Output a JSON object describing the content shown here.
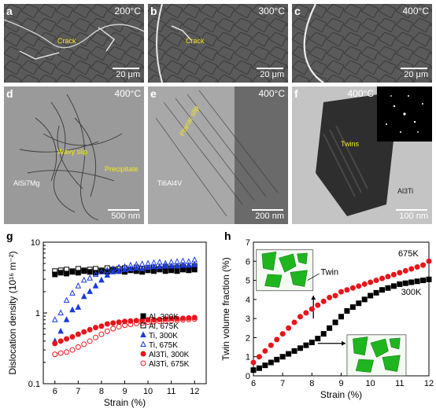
{
  "panels": {
    "a": {
      "label": "a",
      "temp": "200°C",
      "scale": "20 μm",
      "anno": [
        "Crack"
      ]
    },
    "b": {
      "label": "b",
      "temp": "300°C",
      "scale": "20 μm",
      "anno": [
        "Crack"
      ]
    },
    "c": {
      "label": "c",
      "temp": "400°C",
      "scale": "20 μm",
      "anno": []
    },
    "d": {
      "label": "d",
      "temp": "400°C",
      "scale": "500 nm",
      "anno": [
        "Wavy slip",
        "Precipitate",
        "AlSi7Mg"
      ]
    },
    "e": {
      "label": "e",
      "temp": "400°C",
      "scale": "200 nm",
      "anno": [
        "Planar slip",
        "Ti6Al4V"
      ]
    },
    "f": {
      "label": "f",
      "temp": "400°C",
      "scale": "100 nm",
      "anno": [
        "Twins",
        "Al3Ti"
      ]
    }
  },
  "chart_data": [
    {
      "panel": "g",
      "type": "scatter",
      "xlabel": "Strain (%)",
      "ylabel": "Dislocation density (10¹⁶ m⁻²)",
      "yscale": "log",
      "xlim": [
        5.5,
        12.5
      ],
      "ylim": [
        0.1,
        10
      ],
      "xticks": [
        "6",
        "7",
        "8",
        "9",
        "10",
        "11",
        "12"
      ],
      "yticks": [
        "0.1",
        "1",
        "10"
      ],
      "legend_position": "lower-right",
      "series": [
        {
          "name": "Al, 300K",
          "marker": "square-filled",
          "color": "#000000",
          "x": [
            6,
            6.25,
            6.5,
            6.75,
            7,
            7.25,
            7.5,
            7.75,
            8,
            8.25,
            8.5,
            8.75,
            9,
            9.25,
            9.5,
            9.75,
            10,
            10.25,
            10.5,
            10.75,
            11,
            11.25,
            11.5,
            11.75,
            12
          ],
          "y": [
            3.5,
            3.7,
            3.6,
            3.8,
            3.7,
            3.9,
            3.8,
            3.7,
            3.9,
            3.8,
            4.0,
            3.9,
            3.8,
            4.0,
            3.9,
            3.8,
            4.0,
            3.9,
            4.1,
            3.9,
            4.0,
            3.9,
            4.1,
            4.0,
            4.1
          ]
        },
        {
          "name": "Al, 675K",
          "marker": "square-open",
          "color": "#000000",
          "x": [
            6,
            6.25,
            6.5,
            6.75,
            7,
            7.25,
            7.5,
            7.75,
            8,
            8.25,
            8.5,
            8.75,
            9,
            9.25,
            9.5,
            9.75,
            10,
            10.25,
            10.5,
            10.75,
            11,
            11.25,
            11.5,
            11.75,
            12
          ],
          "y": [
            3.9,
            4.0,
            4.1,
            3.9,
            4.2,
            4.0,
            4.1,
            4.2,
            4.0,
            4.3,
            4.1,
            4.2,
            4.3,
            4.1,
            4.4,
            4.2,
            4.3,
            4.4,
            4.2,
            4.5,
            4.3,
            4.4,
            4.5,
            4.3,
            4.6
          ]
        },
        {
          "name": "Ti, 300K",
          "marker": "triangle-filled",
          "color": "#1a3adf",
          "x": [
            6,
            6.25,
            6.5,
            6.75,
            7,
            7.25,
            7.5,
            7.75,
            8,
            8.25,
            8.5,
            8.75,
            9,
            9.25,
            9.5,
            9.75,
            10,
            10.25,
            10.5,
            10.75,
            11,
            11.25,
            11.5,
            11.75,
            12
          ],
          "y": [
            0.4,
            0.55,
            0.8,
            1.1,
            1.2,
            1.7,
            2.0,
            2.4,
            2.9,
            3.4,
            3.8,
            3.9,
            4.1,
            4.2,
            4.3,
            4.2,
            4.4,
            4.5,
            4.5,
            4.6,
            4.6,
            4.6,
            4.7,
            4.7,
            4.8
          ]
        },
        {
          "name": "Ti, 675K",
          "marker": "triangle-open",
          "color": "#1a3adf",
          "x": [
            6,
            6.25,
            6.5,
            6.75,
            7,
            7.25,
            7.5,
            7.75,
            8,
            8.25,
            8.5,
            8.75,
            9,
            9.25,
            9.5,
            9.75,
            10,
            10.25,
            10.5,
            10.75,
            11,
            11.25,
            11.5,
            11.75,
            12
          ],
          "y": [
            0.8,
            1.0,
            1.5,
            1.9,
            2.4,
            2.9,
            3.1,
            3.5,
            3.8,
            4.0,
            4.2,
            4.4,
            4.5,
            4.7,
            4.8,
            4.9,
            5.0,
            5.1,
            5.2,
            5.0,
            5.2,
            5.3,
            5.4,
            5.3,
            5.6
          ]
        },
        {
          "name": "Al3Ti, 300K",
          "marker": "circle-filled",
          "color": "#e8141b",
          "x": [
            6,
            6.25,
            6.5,
            6.75,
            7,
            7.25,
            7.5,
            7.75,
            8,
            8.25,
            8.5,
            8.75,
            9,
            9.25,
            9.5,
            9.75,
            10,
            10.25,
            10.5,
            10.75,
            11,
            11.25,
            11.5,
            11.75,
            12
          ],
          "y": [
            0.37,
            0.4,
            0.43,
            0.46,
            0.5,
            0.54,
            0.58,
            0.62,
            0.65,
            0.7,
            0.72,
            0.74,
            0.76,
            0.77,
            0.78,
            0.79,
            0.8,
            0.8,
            0.81,
            0.82,
            0.83,
            0.83,
            0.84,
            0.85,
            0.86
          ]
        },
        {
          "name": "Al3Ti, 675K",
          "marker": "circle-open",
          "color": "#e8141b",
          "x": [
            6,
            6.25,
            6.5,
            6.75,
            7,
            7.25,
            7.5,
            7.75,
            8,
            8.25,
            8.5,
            8.75,
            9,
            9.25,
            9.5,
            9.75,
            10,
            10.25,
            10.5,
            10.75,
            11,
            11.25,
            11.5,
            11.75,
            12
          ],
          "y": [
            0.26,
            0.27,
            0.28,
            0.3,
            0.33,
            0.36,
            0.4,
            0.45,
            0.5,
            0.55,
            0.6,
            0.64,
            0.67,
            0.69,
            0.71,
            0.72,
            0.74,
            0.75,
            0.76,
            0.77,
            0.78,
            0.79,
            0.8,
            0.81,
            0.82
          ]
        }
      ]
    },
    {
      "panel": "h",
      "type": "scatter",
      "xlabel": "Strain (%)",
      "ylabel": "Twin volume fraction (%)",
      "xlim": [
        6,
        12
      ],
      "ylim": [
        0,
        7
      ],
      "xticks": [
        "6",
        "7",
        "8",
        "9",
        "10",
        "11",
        "12"
      ],
      "yticks": [
        "0",
        "1",
        "2",
        "3",
        "4",
        "5",
        "6",
        "7"
      ],
      "annotations": [
        "Twin",
        "675K",
        "300K"
      ],
      "series": [
        {
          "name": "675K",
          "marker": "circle-filled",
          "color": "#e8141b",
          "x": [
            6,
            6.2,
            6.4,
            6.6,
            6.8,
            7,
            7.2,
            7.4,
            7.6,
            7.8,
            8,
            8.2,
            8.4,
            8.6,
            8.8,
            9,
            9.2,
            9.4,
            9.6,
            9.8,
            10,
            10.2,
            10.4,
            10.6,
            10.8,
            11,
            11.2,
            11.4,
            11.6,
            11.8,
            12
          ],
          "y": [
            0.7,
            1.0,
            1.3,
            1.6,
            1.9,
            2.2,
            2.5,
            2.8,
            3.1,
            3.3,
            3.5,
            3.7,
            3.9,
            4.1,
            4.2,
            4.4,
            4.5,
            4.6,
            4.7,
            4.8,
            4.9,
            5.0,
            5.1,
            5.2,
            5.3,
            5.4,
            5.5,
            5.6,
            5.7,
            5.8,
            6.0
          ]
        },
        {
          "name": "300K",
          "marker": "square-filled",
          "color": "#000000",
          "x": [
            6,
            6.2,
            6.4,
            6.6,
            6.8,
            7,
            7.2,
            7.4,
            7.6,
            7.8,
            8,
            8.2,
            8.4,
            8.6,
            8.8,
            9,
            9.2,
            9.4,
            9.6,
            9.8,
            10,
            10.2,
            10.4,
            10.6,
            10.8,
            11,
            11.2,
            11.4,
            11.6,
            11.8,
            12
          ],
          "y": [
            0.3,
            0.4,
            0.55,
            0.7,
            0.85,
            1.0,
            1.15,
            1.3,
            1.45,
            1.6,
            1.75,
            1.95,
            2.2,
            2.5,
            2.8,
            3.1,
            3.4,
            3.6,
            3.8,
            4.0,
            4.2,
            4.35,
            4.5,
            4.6,
            4.7,
            4.8,
            4.85,
            4.9,
            4.95,
            5.0,
            5.05
          ]
        }
      ]
    }
  ]
}
